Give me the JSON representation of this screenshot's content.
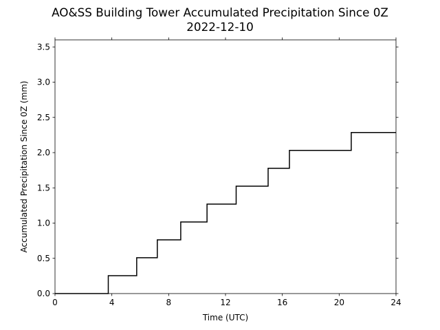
{
  "chart_data": {
    "type": "line",
    "title": "AO&SS Building Tower Accumulated Precipitation Since 0Z",
    "subtitle": "2022-12-10",
    "xlabel": "Time (UTC)",
    "ylabel": "Accumulated Precipitation Since 0Z (mm)",
    "xlim": [
      0,
      24
    ],
    "ylim": [
      0,
      3.6
    ],
    "x_ticks": [
      0,
      4,
      8,
      12,
      16,
      20,
      24
    ],
    "x_tick_labels": [
      "0",
      "4",
      "8",
      "12",
      "16",
      "20",
      "24"
    ],
    "y_ticks": [
      0.0,
      0.5,
      1.0,
      1.5,
      2.0,
      2.5,
      3.0,
      3.5
    ],
    "y_tick_labels": [
      "0.0",
      "0.5",
      "1.0",
      "1.5",
      "2.0",
      "2.5",
      "3.0",
      "3.5"
    ],
    "grid": false,
    "line_color": "#000000",
    "series": [
      {
        "step": true,
        "x": [
          0,
          3.75,
          5.75,
          7.2,
          8.85,
          10.7,
          12.75,
          15.0,
          16.5,
          20.85,
          24
        ],
        "y": [
          0.0,
          0.254,
          0.508,
          0.762,
          1.016,
          1.27,
          1.524,
          1.778,
          2.032,
          2.286,
          2.286
        ]
      }
    ]
  }
}
